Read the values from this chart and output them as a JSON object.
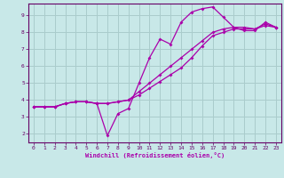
{
  "xlabel": "Windchill (Refroidissement éolien,°C)",
  "ylabel": "",
  "xlim": [
    -0.5,
    23.5
  ],
  "ylim": [
    1.5,
    9.7
  ],
  "xticks": [
    0,
    1,
    2,
    3,
    4,
    5,
    6,
    7,
    8,
    9,
    10,
    11,
    12,
    13,
    14,
    15,
    16,
    17,
    18,
    19,
    20,
    21,
    22,
    23
  ],
  "yticks": [
    2,
    3,
    4,
    5,
    6,
    7,
    8,
    9
  ],
  "bg_color": "#c8e8e8",
  "grid_color": "#aacccc",
  "line_color": "#aa00aa",
  "line1_x": [
    0,
    1,
    2,
    3,
    4,
    5,
    6,
    7,
    8,
    9,
    10,
    11,
    12,
    13,
    14,
    15,
    16,
    17,
    18,
    19,
    20,
    21,
    22,
    23
  ],
  "line1_y": [
    3.6,
    3.6,
    3.6,
    3.8,
    3.9,
    3.9,
    3.8,
    1.9,
    3.2,
    3.5,
    5.0,
    6.5,
    7.6,
    7.3,
    8.6,
    9.2,
    9.4,
    9.5,
    8.9,
    8.3,
    8.1,
    8.1,
    8.6,
    8.3
  ],
  "line2_x": [
    0,
    1,
    2,
    3,
    4,
    5,
    6,
    7,
    8,
    9,
    10,
    11,
    12,
    13,
    14,
    15,
    16,
    17,
    18,
    19,
    20,
    21,
    22,
    23
  ],
  "line2_y": [
    3.6,
    3.6,
    3.6,
    3.8,
    3.9,
    3.9,
    3.8,
    3.8,
    3.9,
    4.0,
    4.5,
    5.0,
    5.5,
    6.0,
    6.5,
    7.0,
    7.5,
    8.0,
    8.2,
    8.3,
    8.3,
    8.2,
    8.5,
    8.3
  ],
  "line3_x": [
    0,
    1,
    2,
    3,
    4,
    5,
    6,
    7,
    8,
    9,
    10,
    11,
    12,
    13,
    14,
    15,
    16,
    17,
    18,
    19,
    20,
    21,
    22,
    23
  ],
  "line3_y": [
    3.6,
    3.6,
    3.6,
    3.8,
    3.9,
    3.9,
    3.8,
    3.8,
    3.9,
    4.0,
    4.3,
    4.7,
    5.1,
    5.5,
    5.9,
    6.5,
    7.2,
    7.8,
    8.0,
    8.2,
    8.2,
    8.2,
    8.4,
    8.3
  ]
}
